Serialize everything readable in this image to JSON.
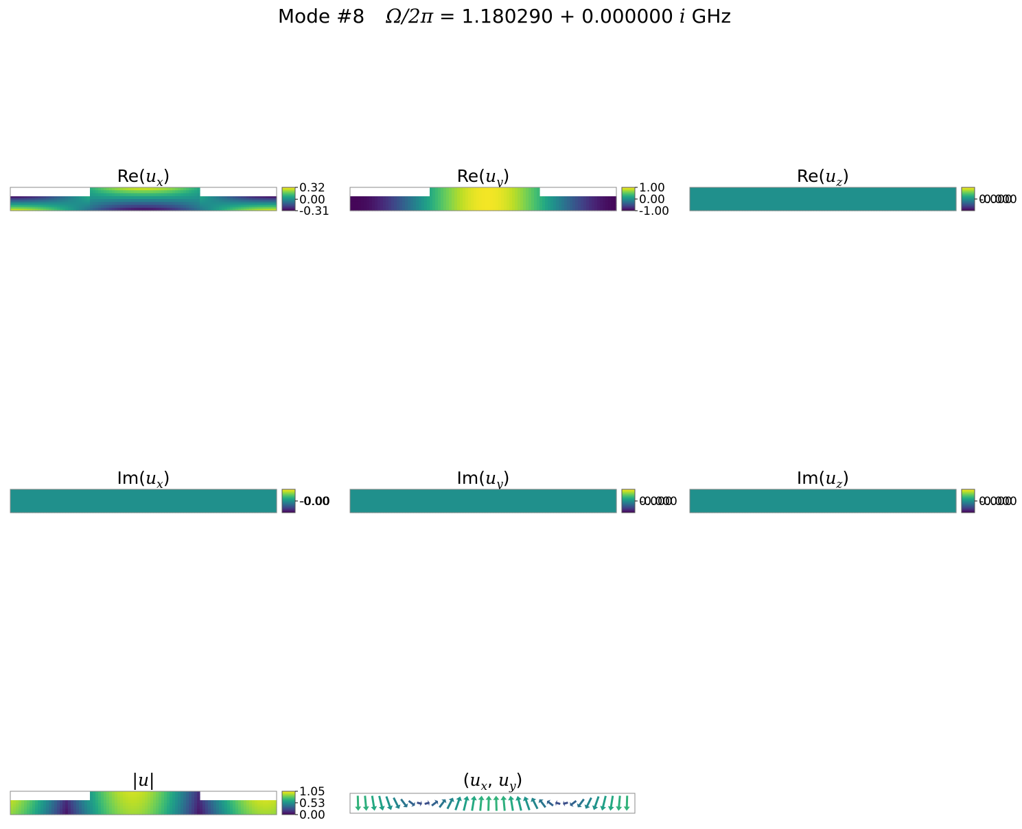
{
  "chart_data": {
    "type": "heatmap",
    "title": {
      "prefix": "Mode #8",
      "omega_label": "Ω/2π",
      "equals": " = ",
      "real": "1.180290",
      "plus": " + ",
      "imag": "0.000000",
      "imag_unit": "i",
      "unit": " GHz"
    },
    "colormap": "viridis",
    "panels": [
      {
        "id": "re-ux",
        "fn": "Re",
        "comp": "x",
        "field": "re_ux",
        "domain": "notched",
        "cbar_ticks": [
          {
            "value": 0.32,
            "label": "0.32"
          },
          {
            "value": 0.0,
            "label": "0.00"
          },
          {
            "value": -0.31,
            "label": "-0.31"
          }
        ],
        "vmin": -0.31,
        "vmax": 0.32
      },
      {
        "id": "re-uy",
        "fn": "Re",
        "comp": "y",
        "field": "re_uy",
        "domain": "notched",
        "cbar_ticks": [
          {
            "value": 1.0,
            "label": "1.00"
          },
          {
            "value": 0.0,
            "label": "0.00"
          },
          {
            "value": -1.0,
            "label": "-1.00"
          }
        ],
        "vmin": -1.0,
        "vmax": 1.0
      },
      {
        "id": "re-uz",
        "fn": "Re",
        "comp": "z",
        "field": "zero",
        "domain": "full",
        "cbar_ticks": [
          {
            "value": 0.0,
            "label": "0.000"
          },
          {
            "value": 0.0,
            "label": "-0.000"
          }
        ],
        "vmin": -1,
        "vmax": 1
      },
      {
        "id": "im-ux",
        "fn": "Im",
        "comp": "x",
        "field": "zero",
        "domain": "full",
        "cbar_ticks": [
          {
            "value": 0.0,
            "label": "-0.00"
          },
          {
            "value": 0.0,
            "label": "-0.00"
          }
        ],
        "vmin": -1,
        "vmax": 1
      },
      {
        "id": "im-uy",
        "fn": "Im",
        "comp": "y",
        "field": "zero",
        "domain": "full",
        "cbar_ticks": [
          {
            "value": 0.0,
            "label": "0.000"
          },
          {
            "value": 0.0,
            "label": "-0.000"
          }
        ],
        "vmin": -1,
        "vmax": 1
      },
      {
        "id": "im-uz",
        "fn": "Im",
        "comp": "z",
        "field": "zero",
        "domain": "full",
        "cbar_ticks": [
          {
            "value": 0.0,
            "label": "0.000"
          },
          {
            "value": 0.0,
            "label": "-0.000"
          }
        ],
        "vmin": -1,
        "vmax": 1
      },
      {
        "id": "abs-u",
        "fn": "abs",
        "comp": "",
        "field": "abs_u",
        "domain": "notched",
        "cbar_ticks": [
          {
            "value": 1.05,
            "label": "1.05"
          },
          {
            "value": 0.53,
            "label": "0.53"
          },
          {
            "value": 0.0,
            "label": "0.00"
          }
        ],
        "vmin": 0.0,
        "vmax": 1.05
      },
      {
        "id": "quiver",
        "fn": "pair",
        "comp": "xy",
        "field": "quiver",
        "domain": "none",
        "cbar_ticks": [],
        "vmin": 0,
        "vmax": 1
      }
    ]
  }
}
